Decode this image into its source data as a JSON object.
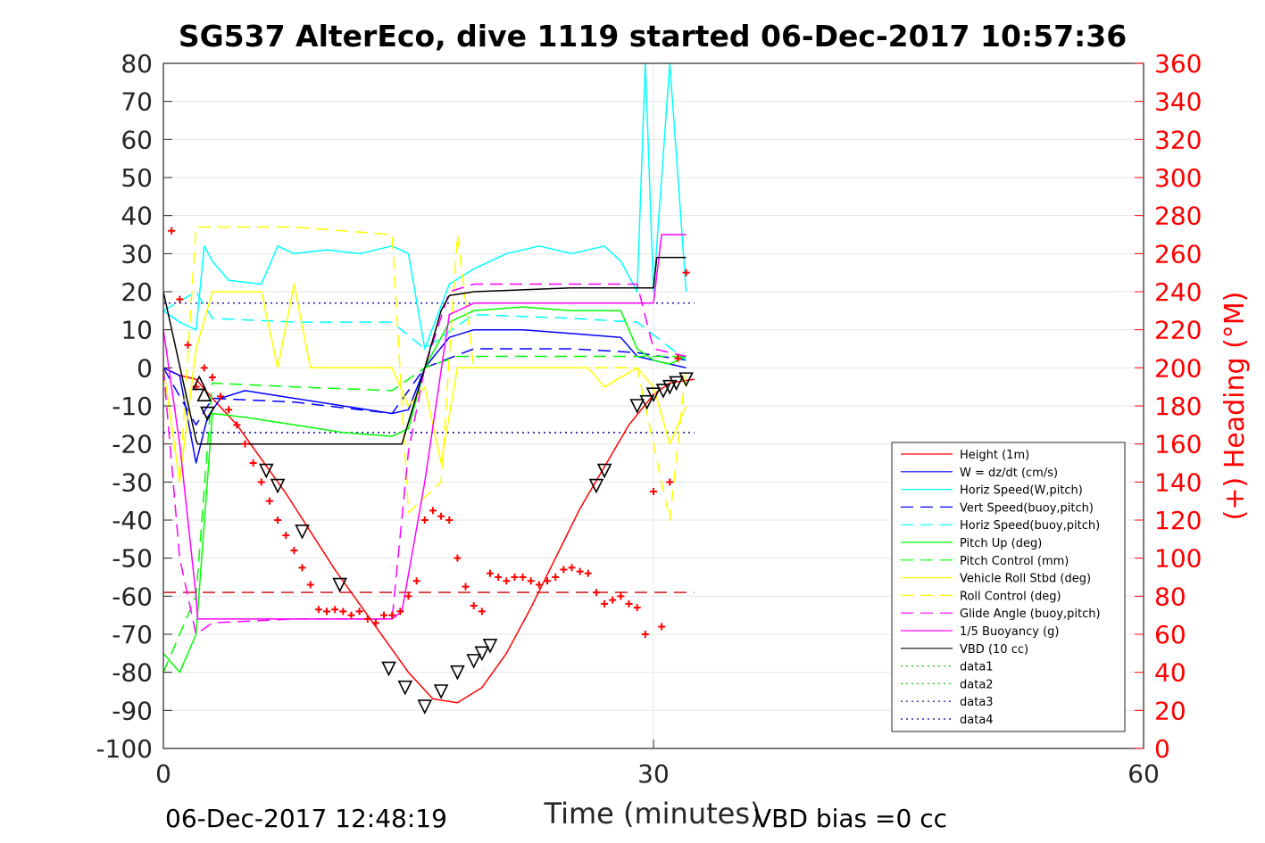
{
  "chart_data": {
    "type": "line",
    "title": "SG537 AlterEco, dive 1119 started 06-Dec-2017 10:57:36",
    "xlabel": "Time (minutes)",
    "ylabel_right": "(+) Heading (°M)",
    "footer_left": "06-Dec-2017 12:48:19",
    "footer_right": "VBD bias =0 cc",
    "xlim": [
      0,
      60
    ],
    "ylim": [
      -100,
      80
    ],
    "ylim_right": [
      0,
      360
    ],
    "x_ticks": [
      "0",
      "30",
      "60"
    ],
    "y_ticks": [
      "80",
      "70",
      "60",
      "50",
      "40",
      "30",
      "20",
      "10",
      "0",
      "-10",
      "-20",
      "-30",
      "-40",
      "-50",
      "-60",
      "-70",
      "-80",
      "-90",
      "-100"
    ],
    "y_ticks_right": [
      "360",
      "340",
      "320",
      "300",
      "280",
      "260",
      "240",
      "220",
      "200",
      "180",
      "160",
      "140",
      "120",
      "100",
      "80",
      "60",
      "40",
      "20",
      "0"
    ],
    "grid": true,
    "legend_position": "bottom-right",
    "colors": {
      "height": "#ff0000",
      "w": "#0000ff",
      "horiz_speed_w": "#00ffff",
      "vert_speed_buoy": "#0000ff",
      "horiz_speed_buoy": "#00ffff",
      "pitch_up": "#00ff00",
      "pitch_control": "#00ff00",
      "roll": "#ffff00",
      "roll_control": "#ffff00",
      "glide_angle": "#ff00ff",
      "buoyancy": "#ff00ff",
      "vbd": "#000000",
      "heading": "#ff0000"
    },
    "series": [
      {
        "name": "Height (1m)",
        "key": "height",
        "style": "solid",
        "x": [
          0,
          1,
          2,
          3,
          4.5,
          6,
          7.5,
          9,
          10.5,
          12,
          13.5,
          15,
          16.5,
          18,
          19.5,
          21,
          22.5,
          24,
          25.5,
          27,
          28.5,
          30,
          31,
          32.5
        ],
        "y": [
          0,
          -2,
          -3,
          -8,
          -15,
          -24,
          -33,
          -43,
          -53,
          -62,
          -71,
          -80,
          -87,
          -88,
          -84,
          -75,
          -63,
          -50,
          -37,
          -26,
          -15,
          -7,
          -4,
          -3
        ]
      },
      {
        "name": "W = dz/dt (cm/s)",
        "key": "w",
        "style": "solid",
        "x": [
          0,
          1,
          2,
          2.7,
          3.5,
          5,
          8,
          11,
          14,
          15,
          16,
          17.5,
          19,
          22,
          25,
          28,
          29,
          30,
          31,
          32
        ],
        "y": [
          0,
          -2,
          -25,
          -13,
          -8,
          -6,
          -8,
          -10,
          -12,
          -11,
          0,
          8,
          10,
          10,
          9,
          8,
          3,
          2,
          1,
          0
        ]
      },
      {
        "name": "Horiz Speed(W,pitch)",
        "key": "horiz_speed_w",
        "style": "solid",
        "x": [
          0,
          1,
          2,
          2.5,
          3,
          4,
          6,
          7,
          8,
          10,
          12,
          14,
          15,
          16,
          17.5,
          19,
          21,
          23,
          25,
          27,
          28,
          29,
          29.5,
          30,
          31,
          32
        ],
        "y": [
          15,
          12,
          10,
          32,
          28,
          23,
          22,
          32,
          30,
          31,
          30,
          32,
          30,
          5,
          22,
          26,
          30,
          32,
          30,
          32,
          28,
          20,
          80,
          20,
          80,
          20
        ]
      },
      {
        "name": "Vert Speed(buoy,pitch)",
        "key": "vert_speed_buoy",
        "style": "dashed",
        "x": [
          0,
          2,
          3,
          8,
          14,
          16,
          19,
          25,
          29,
          32
        ],
        "y": [
          0,
          -15,
          -8,
          -9,
          -12,
          0,
          5,
          5,
          4,
          2
        ]
      },
      {
        "name": "Horiz Speed(buoy,pitch)",
        "key": "horiz_speed_buoy",
        "style": "dashed",
        "x": [
          0,
          2,
          3,
          8,
          14,
          16,
          19,
          25,
          29,
          32
        ],
        "y": [
          15,
          20,
          13,
          12,
          12,
          5,
          14,
          13,
          12,
          2
        ]
      },
      {
        "name": "Pitch Up (deg)",
        "key": "pitch_up",
        "style": "solid",
        "x": [
          0,
          1,
          2,
          3,
          5,
          8,
          11,
          14,
          15,
          16,
          17.5,
          19,
          22,
          25,
          28,
          29,
          30,
          31,
          32
        ],
        "y": [
          -75,
          -80,
          -70,
          -12,
          -13,
          -15,
          -17,
          -18,
          -16,
          0,
          12,
          15,
          16,
          15,
          15,
          5,
          2,
          1,
          3
        ]
      },
      {
        "name": "Pitch Control (mm)",
        "key": "pitch_control",
        "style": "dashed",
        "x": [
          0,
          2,
          3,
          8,
          14,
          16,
          18,
          29,
          32
        ],
        "y": [
          -80,
          -60,
          -4,
          -5,
          -6,
          0,
          3,
          3,
          3
        ]
      },
      {
        "name": "Vehicle Roll Stbd (deg)",
        "key": "roll",
        "style": "solid",
        "x": [
          0,
          1,
          2,
          3,
          6,
          7,
          8,
          9,
          14,
          15,
          16,
          17,
          18,
          19,
          26,
          27,
          29,
          30,
          31,
          32
        ],
        "y": [
          0,
          -30,
          5,
          20,
          20,
          0,
          22,
          0,
          0,
          -10,
          -5,
          -25,
          0,
          0,
          0,
          -5,
          0,
          -5,
          -20,
          -10
        ]
      },
      {
        "name": "Roll Control (deg)",
        "key": "roll_control",
        "style": "dashed",
        "x": [
          0,
          1,
          2,
          3,
          8,
          14,
          15,
          17,
          18,
          19,
          26,
          29,
          30,
          31,
          32
        ],
        "y": [
          0,
          -30,
          37,
          37,
          37,
          35,
          -38,
          -30,
          35,
          0,
          0,
          0,
          -20,
          -40,
          0
        ]
      },
      {
        "name": "Glide Angle (buoy,pitch)",
        "key": "glide_angle",
        "style": "dashed",
        "x": [
          0,
          1,
          2,
          3,
          8,
          14,
          15,
          16,
          17.5,
          19,
          25,
          29,
          30,
          32
        ],
        "y": [
          0,
          -50,
          -70,
          -67,
          -66,
          -66,
          -22,
          0,
          20,
          22,
          22,
          22,
          5,
          3
        ]
      },
      {
        "name": "1/5 Buoyancy (g)",
        "key": "buoyancy",
        "style": "solid",
        "x": [
          0,
          1,
          2,
          2.1,
          8,
          14,
          14.6,
          16,
          17.5,
          19,
          25,
          29,
          30,
          30.5,
          32
        ],
        "y": [
          10,
          -20,
          -60,
          -66,
          -66,
          -66,
          -64,
          -30,
          14,
          17,
          17,
          17,
          17,
          35,
          35
        ]
      },
      {
        "name": "VBD (10 cc)",
        "key": "vbd",
        "style": "solid",
        "x": [
          0,
          2,
          2.1,
          8,
          14,
          14.6,
          16,
          17,
          17.5,
          19,
          25,
          29,
          30,
          30.2,
          32
        ],
        "y": [
          20,
          -19,
          -20,
          -20,
          -20,
          -20,
          0,
          15,
          19,
          20,
          21,
          21,
          21,
          29,
          29
        ]
      },
      {
        "name": "data1",
        "key": "data1",
        "style": "dotted",
        "x": [],
        "y": []
      },
      {
        "name": "data2",
        "key": "data2",
        "style": "dotted",
        "x": [],
        "y": []
      },
      {
        "name": "data3",
        "key": "data3",
        "style": "dotted",
        "x": [],
        "y": []
      },
      {
        "name": "data4",
        "key": "data4",
        "style": "dotted",
        "x": [],
        "y": []
      }
    ],
    "reference_lines": [
      {
        "axis": "left",
        "y": 17,
        "style": "dotted",
        "color": "#0000aa",
        "x": [
          0,
          32.5
        ]
      },
      {
        "axis": "left",
        "y": -17,
        "style": "dotted",
        "color": "#0000aa",
        "x": [
          0,
          32.5
        ]
      },
      {
        "axis": "left",
        "y": -59,
        "style": "dashed",
        "color": "#cc0000",
        "x": [
          0,
          32.5
        ]
      }
    ],
    "heading_points": {
      "axis": "right",
      "x": [
        0.5,
        1,
        1.5,
        2,
        2.5,
        3,
        3.5,
        4,
        4.5,
        5,
        5.5,
        6,
        6.5,
        7,
        7.5,
        8,
        8.5,
        9,
        9.5,
        10,
        10.5,
        11,
        11.5,
        12,
        12.5,
        13,
        13.5,
        14,
        14.5,
        15,
        15.5,
        16,
        16.5,
        17,
        17.5,
        18,
        18.5,
        19,
        19.5,
        20,
        20.5,
        21,
        21.5,
        22,
        22.5,
        23,
        23.5,
        24,
        24.5,
        25,
        25.5,
        26,
        26.5,
        27,
        27.5,
        28,
        28.5,
        29,
        29.5,
        30,
        30.5,
        31,
        31.5,
        32
      ],
      "y": [
        272,
        236,
        212,
        190,
        200,
        195,
        185,
        178,
        170,
        160,
        150,
        140,
        130,
        120,
        112,
        104,
        95,
        86,
        73,
        72,
        73,
        72,
        70,
        72,
        68,
        66,
        70,
        70,
        72,
        80,
        88,
        120,
        125,
        122,
        120,
        100,
        85,
        75,
        72,
        92,
        90,
        88,
        90,
        90,
        88,
        86,
        88,
        90,
        94,
        95,
        93,
        92,
        82,
        76,
        78,
        80,
        76,
        74,
        60,
        135,
        64,
        140,
        205,
        250
      ]
    },
    "markers": {
      "x": [
        2.2,
        2.5,
        2.7,
        6.3,
        7,
        8.5,
        10.8,
        13.8,
        14.8,
        16,
        17,
        18,
        19,
        19.5,
        20,
        26.5,
        27,
        29,
        29.6,
        30,
        30.6,
        31,
        31.4,
        32
      ],
      "y": [
        -4,
        -7,
        -12,
        -27,
        -31,
        -43,
        -57,
        -79,
        -84,
        -89,
        -85,
        -80,
        -77,
        -75,
        -73,
        -31,
        -27,
        -10,
        -9,
        -7,
        -6,
        -5,
        -4,
        -3
      ],
      "up": [
        true,
        true,
        false,
        false,
        false,
        false,
        false,
        false,
        false,
        false,
        false,
        false,
        false,
        false,
        false,
        false,
        false,
        false,
        false,
        false,
        false,
        false,
        false,
        false
      ]
    }
  }
}
